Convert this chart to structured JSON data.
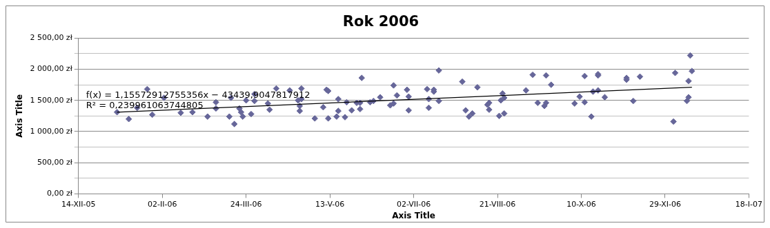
{
  "chart_data": {
    "type": "scatter",
    "title": "Rok 2006",
    "xlabel": "Axis Title",
    "ylabel": "Axis Title",
    "annotations": [
      "f(x) = 1,15572912755356x − 43439,9047817912",
      "R² = 0,239961063744805"
    ],
    "x": [
      "2006-01-06",
      "2006-01-13",
      "2006-01-18",
      "2006-01-24",
      "2006-01-27",
      "2006-02-03",
      "2006-02-13",
      "2006-02-20",
      "2006-03-01",
      "2006-03-06",
      "2006-03-06",
      "2006-03-14",
      "2006-03-17",
      "2006-03-15",
      "2006-03-20",
      "2006-03-21",
      "2006-03-22",
      "2006-03-24",
      "2006-03-27",
      "2006-03-29",
      "2006-03-29",
      "2006-04-06",
      "2006-04-07",
      "2006-04-11",
      "2006-04-19",
      "2006-04-24",
      "2006-04-25",
      "2006-04-25",
      "2006-04-26",
      "2006-04-26",
      "2006-05-04",
      "2006-05-09",
      "2006-05-11",
      "2006-05-12",
      "2006-05-12",
      "2006-05-18",
      "2006-05-17",
      "2006-05-18",
      "2006-05-22",
      "2006-05-23",
      "2006-05-26",
      "2006-05-29",
      "2006-05-31",
      "2006-05-31",
      "2006-06-01",
      "2006-06-06",
      "2006-06-08",
      "2006-06-12",
      "2006-06-18",
      "2006-06-20",
      "2006-06-20",
      "2006-06-22",
      "2006-06-28",
      "2006-06-29",
      "2006-06-29",
      "2006-07-10",
      "2006-07-11",
      "2006-07-11",
      "2006-07-14",
      "2006-07-14",
      "2006-07-17",
      "2006-07-17",
      "2006-07-31",
      "2006-08-02",
      "2006-08-04",
      "2006-08-06",
      "2006-08-09",
      "2006-08-15",
      "2006-08-16",
      "2006-08-16",
      "2006-08-22",
      "2006-08-23",
      "2006-08-24",
      "2006-08-25",
      "2006-08-25",
      "2006-09-07",
      "2006-09-11",
      "2006-09-14",
      "2006-09-18",
      "2006-09-19",
      "2006-09-19",
      "2006-09-22",
      "2006-10-06",
      "2006-10-09",
      "2006-10-12",
      "2006-10-12",
      "2006-10-16",
      "2006-10-17",
      "2006-10-20",
      "2006-10-20",
      "2006-10-20",
      "2006-10-24",
      "2006-11-06",
      "2006-11-06",
      "2006-11-10",
      "2006-11-14",
      "2006-12-04",
      "2006-12-05",
      "2006-12-12",
      "2006-12-13",
      "2006-12-13",
      "2006-12-14",
      "2006-12-15"
    ],
    "series": [
      {
        "color": "#666699",
        "values": [
          1310,
          1200,
          1380,
          1680,
          1270,
          1540,
          1300,
          1310,
          1240,
          1470,
          1370,
          1240,
          1120,
          1540,
          1370,
          1310,
          1240,
          1500,
          1280,
          1600,
          1490,
          1450,
          1350,
          1690,
          1660,
          1500,
          1410,
          1330,
          1690,
          1520,
          1210,
          1390,
          1670,
          1650,
          1210,
          1520,
          1240,
          1330,
          1230,
          1470,
          1340,
          1460,
          1460,
          1360,
          1860,
          1470,
          1490,
          1550,
          1420,
          1450,
          1740,
          1580,
          1670,
          1560,
          1340,
          1680,
          1520,
          1380,
          1670,
          1640,
          1980,
          1490,
          1800,
          1340,
          1240,
          1290,
          1710,
          1430,
          1460,
          1350,
          1250,
          1500,
          1610,
          1290,
          1540,
          1660,
          1910,
          1460,
          1410,
          1460,
          1900,
          1750,
          1450,
          1560,
          1470,
          1890,
          1240,
          1640,
          1660,
          1920,
          1900,
          1550,
          1860,
          1830,
          1490,
          1880,
          1160,
          1940,
          1490,
          1550,
          1810,
          2220,
          1970
        ]
      },
      {
        "type": "line",
        "color": "#000000",
        "x": [
          "2006-01-06",
          "2006-12-15"
        ],
        "values": [
          1310,
          1710
        ],
        "marker": "none"
      }
    ],
    "xlim": [
      "2005-12-14",
      "2007-01-18"
    ],
    "xticks": [
      {
        "value": "2005-12-14",
        "label": "14-XII-05"
      },
      {
        "value": "2006-02-02",
        "label": "02-II-06"
      },
      {
        "value": "2006-03-24",
        "label": "24-III-06"
      },
      {
        "value": "2006-05-13",
        "label": "13-V-06"
      },
      {
        "value": "2006-07-02",
        "label": "02-VII-06"
      },
      {
        "value": "2006-08-21",
        "label": "21-VIII-06"
      },
      {
        "value": "2006-10-10",
        "label": "10-X-06"
      },
      {
        "value": "2006-11-29",
        "label": "29-XI-06"
      },
      {
        "value": "2007-01-18",
        "label": "18-I-07"
      }
    ],
    "ylim": [
      0,
      2500
    ],
    "yticks": [
      {
        "value": 0,
        "label": "0,00 zł"
      },
      {
        "value": 250,
        "label": null
      },
      {
        "value": 500,
        "label": "500,00 zł"
      },
      {
        "value": 750,
        "label": null
      },
      {
        "value": 1000,
        "label": "1 000,00 zł"
      },
      {
        "value": 1250,
        "label": null
      },
      {
        "value": 1500,
        "label": "1 500,00 zł"
      },
      {
        "value": 1750,
        "label": null
      },
      {
        "value": 2000,
        "label": "2 000,00 zł"
      },
      {
        "value": 2250,
        "label": null
      },
      {
        "value": 2500,
        "label": "2 500,00 zł"
      }
    ],
    "grid": "y",
    "legend": false,
    "marker": "diamond"
  }
}
